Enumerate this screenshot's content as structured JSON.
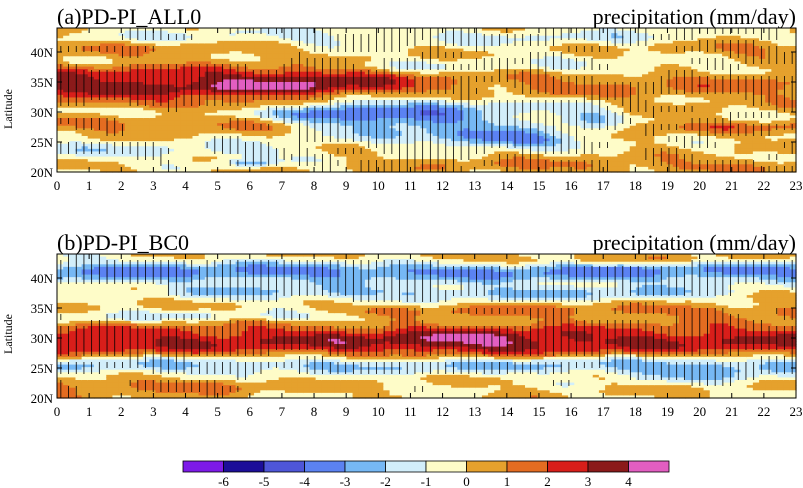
{
  "chart_data": [
    {
      "type": "heatmap",
      "title": "(a)PD-PI_ALL0",
      "right_title": "precipitation (mm/day)",
      "ylabel": "Latitude",
      "x_ticks": [
        "0",
        "1",
        "2",
        "3",
        "4",
        "5",
        "6",
        "7",
        "8",
        "9",
        "10",
        "11",
        "12",
        "13",
        "14",
        "15",
        "16",
        "17",
        "18",
        "19",
        "20",
        "21",
        "22",
        "23"
      ],
      "xlim": [
        0,
        23
      ],
      "y_ticks": [
        "20N",
        "25N",
        "30N",
        "35N",
        "40N"
      ],
      "y_values": [
        20,
        25,
        30,
        35,
        40
      ],
      "ylim": [
        20,
        44
      ],
      "hatching": "vertical",
      "features": [
        {
          "type": "band",
          "lat": 33.5,
          "width": 3,
          "amp": 3.6,
          "x0": 0,
          "x1": 8,
          "decay": 3
        },
        {
          "type": "band",
          "lat": 34.5,
          "width": 2.5,
          "amp": 1.2,
          "x0": 8,
          "x1": 23,
          "decay": 3
        },
        {
          "type": "band",
          "lat": 36.5,
          "width": 1.5,
          "amp": 1.0,
          "x0": 0,
          "x1": 8,
          "decay": 2
        },
        {
          "type": "band",
          "lat": 32.5,
          "width": 1.2,
          "amp": -1.2,
          "x0": 0,
          "x1": 8,
          "decay": 2
        },
        {
          "type": "band",
          "lat": 28,
          "width": 1.2,
          "amp": 1.3,
          "x0": 0,
          "x1": 6,
          "decay": 2
        },
        {
          "type": "band",
          "lat": 27.5,
          "width": 1.0,
          "amp": 1.2,
          "x0": 19,
          "x1": 23,
          "decay": 2
        },
        {
          "type": "band",
          "lat": 30,
          "width": 1.2,
          "amp": -1.3,
          "x0": 0,
          "x1": 8,
          "decay": 2
        },
        {
          "type": "band",
          "lat": 40.5,
          "width": 1.2,
          "amp": 1.0,
          "x0": 0,
          "x1": 5,
          "decay": 2
        },
        {
          "type": "band",
          "lat": 40.5,
          "width": 1.2,
          "amp": 1.0,
          "x0": 20,
          "x1": 23,
          "decay": 2
        },
        {
          "type": "band",
          "lat": 42.5,
          "width": 1.5,
          "amp": -1.1,
          "x0": 4,
          "x1": 18,
          "decay": 3
        },
        {
          "type": "band",
          "lat": 37.5,
          "width": 1.3,
          "amp": -1.1,
          "x0": 10,
          "x1": 18,
          "decay": 3
        },
        {
          "type": "band",
          "lat": 21,
          "width": 1.2,
          "amp": 1.0,
          "x0": 14,
          "x1": 23,
          "decay": 3
        },
        {
          "type": "band",
          "lat": 23.5,
          "width": 1.5,
          "amp": -1.3,
          "x0": 0,
          "x1": 6,
          "decay": 2
        },
        {
          "type": "blob",
          "x": 11,
          "lat": 29.5,
          "sx": 3.5,
          "sy": 3.5,
          "amp": -3.6
        },
        {
          "type": "blob",
          "x": 14,
          "lat": 25.5,
          "sx": 2.2,
          "sy": 1.4,
          "amp": -3.4
        },
        {
          "type": "blob",
          "x": 8.5,
          "lat": 31,
          "sx": 1.5,
          "sy": 2.5,
          "amp": -1.6
        },
        {
          "type": "blob",
          "x": 6,
          "lat": 21.5,
          "sx": 0.8,
          "sy": 0.6,
          "amp": -2.2
        },
        {
          "type": "blob",
          "x": 16.5,
          "lat": 29,
          "sx": 1.2,
          "sy": 2.2,
          "amp": -1.6
        }
      ]
    },
    {
      "type": "heatmap",
      "title": "(b)PD-PI_BC0",
      "right_title": "precipitation (mm/day)",
      "ylabel": "Latitude",
      "x_ticks": [
        "0",
        "1",
        "2",
        "3",
        "4",
        "5",
        "6",
        "7",
        "8",
        "9",
        "10",
        "11",
        "12",
        "13",
        "14",
        "15",
        "16",
        "17",
        "18",
        "19",
        "20",
        "21",
        "22",
        "23"
      ],
      "xlim": [
        0,
        23
      ],
      "y_ticks": [
        "20N",
        "25N",
        "30N",
        "35N",
        "40N"
      ],
      "y_values": [
        20,
        25,
        30,
        35,
        40
      ],
      "ylim": [
        20,
        44
      ],
      "hatching": "vertical",
      "features": [
        {
          "type": "band",
          "lat": 29.5,
          "width": 2.8,
          "amp": 3.0,
          "x0": 0,
          "x1": 23,
          "decay": 3
        },
        {
          "type": "blob",
          "x": 13,
          "lat": 29.5,
          "sx": 3,
          "sy": 1.8,
          "amp": 1.2
        },
        {
          "type": "band",
          "lat": 41,
          "width": 1.8,
          "amp": -3.2,
          "x0": 0,
          "x1": 23,
          "decay": 3
        },
        {
          "type": "band",
          "lat": 37.5,
          "width": 1.3,
          "amp": -2.0,
          "x0": 6,
          "x1": 18,
          "decay": 3
        },
        {
          "type": "band",
          "lat": 25.5,
          "width": 1.5,
          "amp": -2.4,
          "x0": 0,
          "x1": 23,
          "decay": 3
        },
        {
          "type": "band",
          "lat": 22,
          "width": 1.2,
          "amp": 1.3,
          "x0": 0,
          "x1": 5,
          "decay": 2
        },
        {
          "type": "band",
          "lat": 34.5,
          "width": 1.1,
          "amp": 1.2,
          "x0": 11,
          "x1": 23,
          "decay": 3
        },
        {
          "type": "band",
          "lat": 43,
          "width": 1.0,
          "amp": 1.0,
          "x0": 12,
          "x1": 20,
          "decay": 3
        },
        {
          "type": "band",
          "lat": 33.5,
          "width": 1.0,
          "amp": -1.4,
          "x0": 0,
          "x1": 8,
          "decay": 3
        },
        {
          "type": "blob",
          "x": 20,
          "lat": 24,
          "sx": 2.5,
          "sy": 1.5,
          "amp": -1.6
        }
      ]
    }
  ],
  "colorbar": {
    "colors": [
      "#7d1ae8",
      "#1c0e99",
      "#4e56d8",
      "#5b82f2",
      "#76b8f4",
      "#d2eefa",
      "#fefcc8",
      "#e5a12d",
      "#e46c21",
      "#d81e1a",
      "#8b1a1a",
      "#e25ec1"
    ],
    "levels": [
      -6,
      -5,
      -4,
      -3,
      -2,
      -1,
      0,
      1,
      2,
      3,
      4
    ],
    "labels": [
      "-6",
      "-5",
      "-4",
      "-3",
      "-2",
      "-1",
      "0",
      "1",
      "2",
      "3",
      "4"
    ]
  }
}
